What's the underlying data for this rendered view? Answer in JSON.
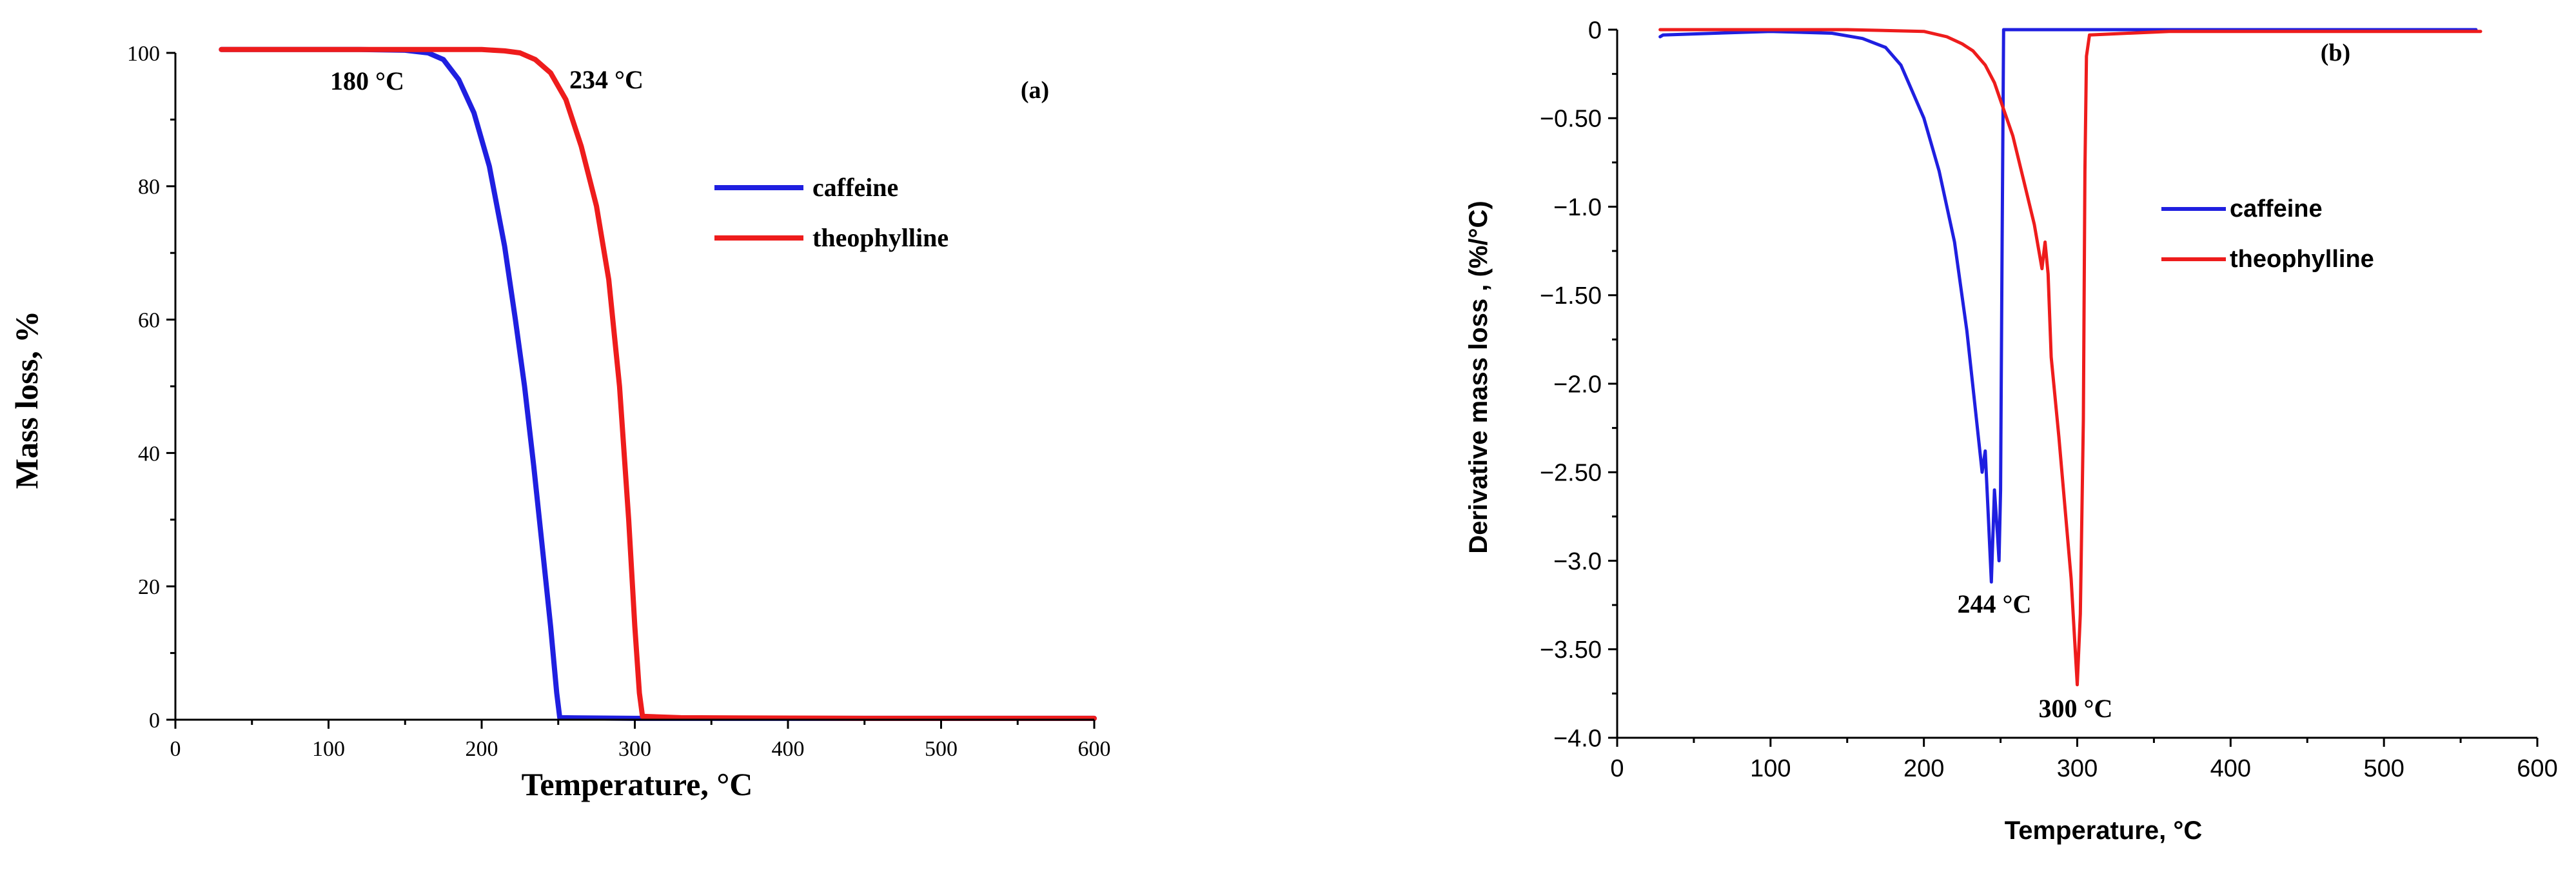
{
  "chart_data": [
    {
      "panel": "(a)",
      "type": "line",
      "xlabel": "Temperature, °C",
      "ylabel": "Mass loss, %",
      "xlim": [
        0,
        600
      ],
      "ylim": [
        0,
        100
      ],
      "xticks": [
        0,
        100,
        200,
        300,
        400,
        500,
        600
      ],
      "yticks": [
        0,
        20,
        40,
        60,
        80,
        100
      ],
      "grid": false,
      "legend_position": "center-right",
      "annotations": [
        {
          "text": "180 °C",
          "x": 180,
          "y": 100.5
        },
        {
          "text": "234 °C",
          "x": 234,
          "y": 100.5
        }
      ],
      "series": [
        {
          "name": "caffeine",
          "color": "#1f1fe0",
          "points": [
            [
              30,
              100.5
            ],
            [
              120,
              100.5
            ],
            [
              150,
              100.4
            ],
            [
              165,
              100
            ],
            [
              175,
              99
            ],
            [
              185,
              96
            ],
            [
              195,
              91
            ],
            [
              205,
              83
            ],
            [
              215,
              71
            ],
            [
              222,
              60
            ],
            [
              228,
              50
            ],
            [
              234,
              38
            ],
            [
              240,
              25
            ],
            [
              245,
              14
            ],
            [
              249,
              4
            ],
            [
              251,
              0.3
            ],
            [
              300,
              0.2
            ],
            [
              450,
              0.2
            ],
            [
              600,
              0.2
            ]
          ]
        },
        {
          "name": "theophylline",
          "color": "#ee1c1c",
          "points": [
            [
              30,
              100.5
            ],
            [
              150,
              100.5
            ],
            [
              200,
              100.5
            ],
            [
              215,
              100.3
            ],
            [
              225,
              100
            ],
            [
              235,
              99
            ],
            [
              245,
              97
            ],
            [
              255,
              93
            ],
            [
              265,
              86
            ],
            [
              275,
              77
            ],
            [
              283,
              66
            ],
            [
              290,
              50
            ],
            [
              296,
              30
            ],
            [
              300,
              14
            ],
            [
              303,
              4
            ],
            [
              305,
              0.5
            ],
            [
              330,
              0.3
            ],
            [
              450,
              0.2
            ],
            [
              600,
              0.2
            ]
          ]
        }
      ]
    },
    {
      "panel": "(b)",
      "type": "line",
      "xlabel": "Temperature, °C",
      "ylabel": "Derivative mass loss , (%/°C)",
      "xlim": [
        0,
        600
      ],
      "ylim": [
        -4.0,
        0
      ],
      "xticks": [
        0,
        100,
        200,
        300,
        400,
        500,
        600
      ],
      "yticks": [
        0,
        -0.5,
        -1.0,
        -1.5,
        -2.0,
        -2.5,
        -3.0,
        -3.5,
        -4.0
      ],
      "ytick_labels": [
        "0",
        "−0.50",
        "−1.0",
        "−1.50",
        "−2.0",
        "−2.50",
        "−3.0",
        "−3.50",
        "−4.0"
      ],
      "grid": false,
      "legend_position": "center-right",
      "annotations": [
        {
          "text": "244 °C",
          "x": 244,
          "y": -3.12
        },
        {
          "text": "300 °C",
          "x": 300,
          "y": -3.7
        }
      ],
      "series": [
        {
          "name": "caffeine",
          "color": "#1f1fe0",
          "points": [
            [
              28,
              -0.04
            ],
            [
              30,
              -0.03
            ],
            [
              100,
              -0.01
            ],
            [
              140,
              -0.02
            ],
            [
              160,
              -0.05
            ],
            [
              175,
              -0.1
            ],
            [
              185,
              -0.2
            ],
            [
              190,
              -0.3
            ],
            [
              200,
              -0.5
            ],
            [
              210,
              -0.8
            ],
            [
              220,
              -1.2
            ],
            [
              228,
              -1.7
            ],
            [
              233,
              -2.1
            ],
            [
              238,
              -2.5
            ],
            [
              240,
              -2.38
            ],
            [
              242,
              -2.75
            ],
            [
              244,
              -3.12
            ],
            [
              246,
              -2.6
            ],
            [
              248,
              -2.85
            ],
            [
              249,
              -3.0
            ],
            [
              250,
              -2.6
            ],
            [
              251,
              -1.2
            ],
            [
              252,
              0
            ],
            [
              560,
              0
            ]
          ]
        },
        {
          "name": "theophylline",
          "color": "#ee1c1c",
          "points": [
            [
              28,
              0
            ],
            [
              150,
              0
            ],
            [
              200,
              -0.01
            ],
            [
              215,
              -0.04
            ],
            [
              225,
              -0.08
            ],
            [
              232,
              -0.12
            ],
            [
              240,
              -0.2
            ],
            [
              246,
              -0.3
            ],
            [
              252,
              -0.45
            ],
            [
              258,
              -0.6
            ],
            [
              265,
              -0.85
            ],
            [
              272,
              -1.1
            ],
            [
              277,
              -1.35
            ],
            [
              279,
              -1.2
            ],
            [
              281,
              -1.38
            ],
            [
              283,
              -1.85
            ],
            [
              288,
              -2.3
            ],
            [
              292,
              -2.7
            ],
            [
              296,
              -3.1
            ],
            [
              299,
              -3.55
            ],
            [
              300,
              -3.7
            ],
            [
              302,
              -3.3
            ],
            [
              304,
              -2.2
            ],
            [
              305,
              -0.8
            ],
            [
              306,
              -0.15
            ],
            [
              308,
              -0.03
            ],
            [
              360,
              -0.01
            ],
            [
              563,
              -0.01
            ]
          ]
        }
      ]
    }
  ]
}
